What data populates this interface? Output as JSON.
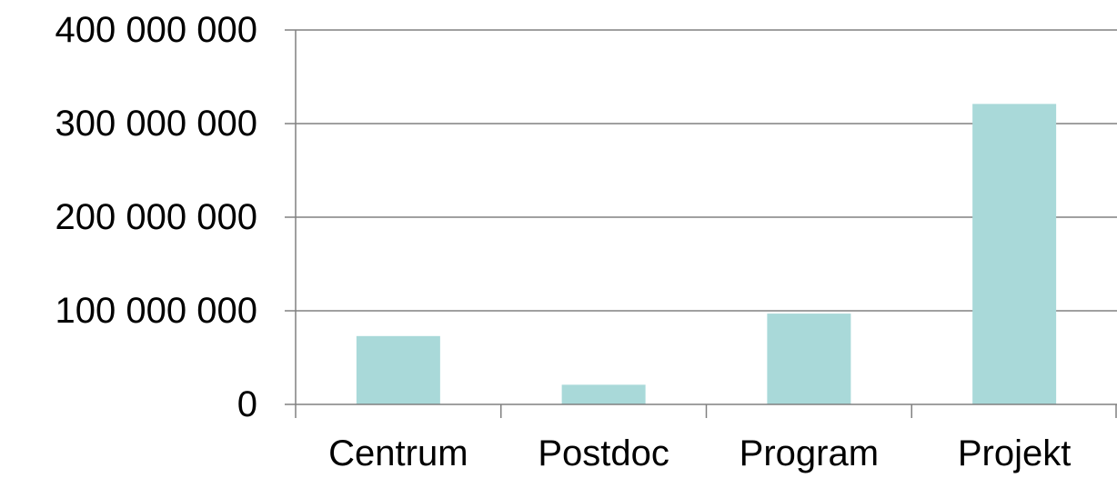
{
  "chart_data": {
    "type": "bar",
    "categories": [
      "Centrum",
      "Postdoc",
      "Program",
      "Projekt"
    ],
    "values": [
      73000000,
      21000000,
      97000000,
      321000000
    ],
    "ylim": [
      0,
      400000000
    ],
    "y_ticks": [
      0,
      100000000,
      200000000,
      300000000,
      400000000
    ],
    "y_tick_labels": [
      "0",
      "100 000 000",
      "200 000 000",
      "300 000 000",
      "400 000 000"
    ],
    "grid": true,
    "legend": "none",
    "colors": {
      "bar": "#a9d9d9",
      "grid": "#808080",
      "axis": "#808080",
      "text": "#000000"
    }
  }
}
